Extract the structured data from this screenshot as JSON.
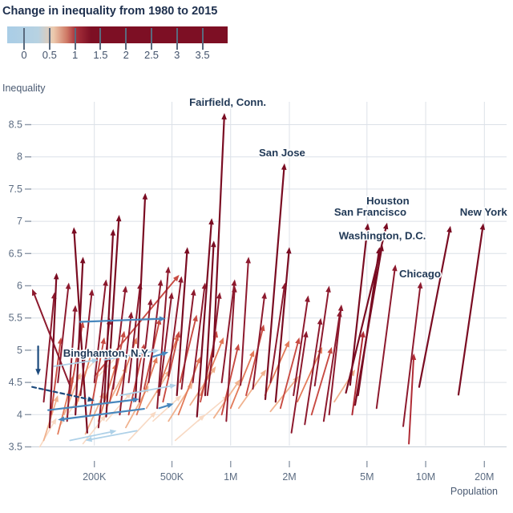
{
  "title": "Change in inequality from 1980 to 2015",
  "legend": {
    "ticks": [
      {
        "value": 0,
        "label": "0"
      },
      {
        "value": 0.5,
        "label": "0.5"
      },
      {
        "value": 1,
        "label": "1"
      },
      {
        "value": 1.5,
        "label": "1.5"
      },
      {
        "value": 2,
        "label": "2"
      },
      {
        "value": 2.5,
        "label": "2.5"
      },
      {
        "value": 3,
        "label": "3"
      },
      {
        "value": 3.5,
        "label": "3.5"
      }
    ],
    "gradient": [
      {
        "pct": 0,
        "color": "#a9cde6"
      },
      {
        "pct": 14,
        "color": "#b7d2e2"
      },
      {
        "pct": 21,
        "color": "#ecc9ad"
      },
      {
        "pct": 27,
        "color": "#cf7a66"
      },
      {
        "pct": 31,
        "color": "#a8323c"
      },
      {
        "pct": 38,
        "color": "#7d0f24"
      },
      {
        "pct": 100,
        "color": "#7d0f24"
      }
    ]
  },
  "axes": {
    "y_title": "Inequality",
    "x_title": "Population"
  },
  "chart_data": {
    "type": "arrow-scatter",
    "title": "Change in inequality from 1980 to 2015",
    "x_axis": {
      "label": "Population",
      "scale": "log",
      "ticks": [
        {
          "value": 200,
          "label": "200K"
        },
        {
          "value": 500,
          "label": "500K"
        },
        {
          "value": 1000,
          "label": "1M"
        },
        {
          "value": 2000,
          "label": "2M"
        },
        {
          "value": 5000,
          "label": "5M"
        },
        {
          "value": 10000,
          "label": "10M"
        },
        {
          "value": 20000,
          "label": "20M"
        }
      ]
    },
    "y_axis": {
      "label": "Inequality",
      "range": [
        3.5,
        8.8
      ],
      "ticks": [
        3.5,
        4,
        4.5,
        5,
        5.5,
        6,
        6.5,
        7,
        7.5,
        8,
        8.5
      ]
    },
    "arrow_semantics": {
      "tail": "1980 value [population_thousands, inequality]",
      "head": "2015 value [population_thousands, inequality]",
      "color": "change in inequality 1980-2015 (5th element)"
    },
    "color_scale": [
      {
        "max": -0.45,
        "color": "#1c4a7d",
        "width": 2.2
      },
      {
        "max": -0.18,
        "color": "#4787bd",
        "width": 2.2
      },
      {
        "max": 0.18,
        "color": "#aed1e8",
        "width": 1.8
      },
      {
        "max": 0.45,
        "color": "#f8d9c3",
        "width": 1.6
      },
      {
        "max": 0.7,
        "color": "#f0b28e",
        "width": 1.8
      },
      {
        "max": 0.95,
        "color": "#e27a59",
        "width": 1.8
      },
      {
        "max": 1.2,
        "color": "#c74a42",
        "width": 1.9
      },
      {
        "max": 1.45,
        "color": "#b02c35",
        "width": 2.0
      },
      {
        "max": 2.2,
        "color": "#8d1a2e",
        "width": 2.0
      },
      {
        "max": 99,
        "color": "#7a0c22",
        "width": 2.2
      }
    ],
    "arrows": [
      [
        105,
        3.5,
        128,
        3.95,
        0.45
      ],
      [
        135,
        3.85,
        170,
        4.3,
        0.45
      ],
      [
        175,
        3.55,
        230,
        4.0,
        0.45
      ],
      [
        230,
        3.9,
        310,
        4.35,
        0.45
      ],
      [
        300,
        3.6,
        415,
        4.05,
        0.45
      ],
      [
        400,
        3.9,
        560,
        4.3,
        0.4
      ],
      [
        520,
        3.6,
        740,
        4.0,
        0.4
      ],
      [
        680,
        3.9,
        980,
        4.3,
        0.4
      ],
      [
        160,
        4.5,
        210,
        4.9,
        0.4
      ],
      [
        210,
        4.6,
        280,
        5.0,
        0.4
      ],
      [
        110,
        3.6,
        130,
        4.3,
        0.7
      ],
      [
        140,
        4.0,
        170,
        4.65,
        0.65
      ],
      [
        180,
        3.7,
        225,
        4.35,
        0.65
      ],
      [
        230,
        4.1,
        295,
        4.75,
        0.65
      ],
      [
        290,
        3.8,
        380,
        4.45,
        0.65
      ],
      [
        370,
        4.1,
        490,
        4.7,
        0.6
      ],
      [
        480,
        3.9,
        640,
        4.5,
        0.6
      ],
      [
        620,
        4.15,
        840,
        4.75,
        0.6
      ],
      [
        820,
        3.95,
        1120,
        4.55,
        0.6
      ],
      [
        1100,
        4.1,
        1520,
        4.7,
        0.6
      ],
      [
        1600,
        4.05,
        2240,
        4.6,
        0.55
      ],
      [
        3400,
        4.2,
        4350,
        4.7,
        0.5
      ],
      [
        130,
        3.7,
        155,
        4.6,
        0.9
      ],
      [
        160,
        4.1,
        195,
        5.0,
        0.9
      ],
      [
        210,
        3.9,
        260,
        4.8,
        0.9
      ],
      [
        260,
        4.3,
        330,
        5.2,
        0.9
      ],
      [
        330,
        4.0,
        420,
        4.9,
        0.9
      ],
      [
        420,
        4.35,
        540,
        5.25,
        0.9
      ],
      [
        540,
        4.0,
        700,
        4.9,
        0.9
      ],
      [
        700,
        4.3,
        920,
        5.2,
        0.9
      ],
      [
        1000,
        4.1,
        1320,
        5.0,
        0.9
      ],
      [
        1500,
        4.3,
        2000,
        5.15,
        0.85
      ],
      [
        2200,
        4.2,
        2950,
        5.05,
        0.85
      ],
      [
        120,
        4.0,
        135,
        5.2,
        1.2
      ],
      [
        150,
        4.3,
        175,
        5.45,
        1.15
      ],
      [
        190,
        4.0,
        225,
        5.2,
        1.2
      ],
      [
        201,
        4.6,
        545,
        6.17,
        1.1
      ],
      [
        240,
        4.2,
        285,
        5.3,
        1.1
      ],
      [
        300,
        4.0,
        360,
        5.1,
        1.1
      ],
      [
        360,
        4.4,
        435,
        5.5,
        1.1
      ],
      [
        450,
        4.2,
        545,
        5.3,
        1.1
      ],
      [
        550,
        4.5,
        670,
        5.55,
        1.05
      ],
      [
        700,
        4.2,
        850,
        5.3,
        1.1
      ],
      [
        900,
        4.0,
        1100,
        5.1,
        1.1
      ],
      [
        1200,
        4.3,
        1480,
        5.4,
        1.1
      ],
      [
        1800,
        4.1,
        2250,
        5.2,
        1.1
      ],
      [
        2600,
        4.0,
        3300,
        5.05,
        1.05
      ],
      [
        4200,
        4.0,
        4800,
        5.3,
        1.3
      ],
      [
        110,
        4.2,
        125,
        5.9,
        1.7
      ],
      [
        130,
        4.5,
        148,
        6.05,
        1.55
      ],
      [
        145,
        3.9,
        160,
        5.7,
        1.8
      ],
      [
        170,
        4.3,
        195,
        5.95,
        1.65
      ],
      [
        200,
        4.5,
        230,
        6.1,
        1.6
      ],
      [
        210,
        3.8,
        240,
        5.5,
        1.7
      ],
      [
        250,
        4.4,
        290,
        6.0,
        1.6
      ],
      [
        270,
        4.0,
        310,
        5.6,
        1.6
      ],
      [
        300,
        4.5,
        345,
        6.05,
        1.55
      ],
      [
        340,
        4.2,
        390,
        5.8,
        1.6
      ],
      [
        380,
        4.5,
        440,
        6.1,
        1.6
      ],
      [
        430,
        4.3,
        500,
        5.9,
        1.6
      ],
      [
        480,
        4.6,
        560,
        6.15,
        1.55
      ],
      [
        560,
        4.4,
        650,
        5.95,
        1.55
      ],
      [
        640,
        4.5,
        740,
        6.05,
        1.55
      ],
      [
        760,
        4.3,
        880,
        5.9,
        1.6
      ],
      [
        900,
        4.5,
        1050,
        6.1,
        1.6
      ],
      [
        1300,
        4.4,
        1500,
        5.9,
        1.5
      ],
      [
        1600,
        4.5,
        1900,
        6.05,
        1.55
      ],
      [
        2100,
        4.3,
        2500,
        5.85,
        1.55
      ],
      [
        2700,
        4.45,
        3200,
        6.0,
        1.55
      ],
      [
        2400,
        3.85,
        2900,
        5.5,
        1.65
      ],
      [
        3000,
        3.9,
        3650,
        5.62,
        1.7
      ],
      [
        2050,
        3.72,
        2450,
        5.3,
        1.6
      ],
      [
        8200,
        3.55,
        8700,
        4.95,
        1.4
      ],
      [
        150,
        4.45,
        96,
        5.95,
        1.5
      ],
      [
        230,
        3.97,
        268,
        7.1,
        3.1
      ],
      [
        325,
        4.21,
        365,
        7.44,
        3.2
      ],
      [
        184,
        3.72,
        157,
        6.91,
        3.2
      ],
      [
        672,
        3.97,
        800,
        7.05,
        3.1
      ],
      [
        740,
        4.3,
        820,
        6.7,
        2.4
      ],
      [
        225,
        4.2,
        250,
        6.88,
        2.7
      ],
      [
        160,
        4.0,
        175,
        6.45,
        2.5
      ],
      [
        118,
        3.8,
        128,
        6.2,
        2.4
      ],
      [
        1124,
        4.46,
        1236,
        6.45,
        2.0
      ],
      [
        1700,
        4.2,
        2000,
        6.6,
        2.4
      ],
      [
        950,
        3.9,
        1050,
        6.0,
        2.1
      ],
      [
        420,
        4.1,
        480,
        6.3,
        2.2
      ],
      [
        530,
        4.3,
        600,
        6.6,
        2.3
      ],
      [
        3200,
        4.0,
        3700,
        5.71,
        1.7
      ],
      [
        5600,
        4.1,
        7000,
        6.33,
        2.2
      ],
      [
        814,
        4.9,
        929,
        8.68,
        3.8,
        "Fairfield, Conn."
      ],
      [
        1506,
        4.24,
        1888,
        7.9,
        3.7,
        "San Jose"
      ],
      [
        3900,
        4.34,
        6346,
        6.98,
        2.6,
        "Houston"
      ],
      [
        4100,
        4.46,
        5057,
        6.97,
        2.5,
        "San Francisco"
      ],
      [
        4346,
        4.15,
        5994,
        6.64,
        2.5,
        "Washington, D.C."
      ],
      [
        4500,
        4.3,
        5800,
        6.6,
        2.3
      ],
      [
        7670,
        3.82,
        9440,
        6.06,
        2.2,
        "Chicago"
      ],
      [
        9260,
        4.43,
        13400,
        6.93,
        2.5
      ],
      [
        14730,
        4.31,
        19760,
        6.97,
        2.7,
        "New York"
      ],
      [
        169,
        5.44,
        465,
        5.49,
        -0.3
      ],
      [
        116,
        4.07,
        340,
        4.24,
        -0.3
      ],
      [
        360,
        4.09,
        130,
        3.92,
        -0.3
      ],
      [
        96,
        4.43,
        200,
        4.22,
        -0.45,
        null,
        "dashed"
      ],
      [
        272,
        4.3,
        527,
        4.46,
        -0.1
      ],
      [
        225,
        4.85,
        430,
        5.0,
        -0.05
      ],
      [
        124,
        4.75,
        210,
        4.85,
        -0.1
      ],
      [
        400,
        4.9,
        480,
        4.97,
        -0.25
      ],
      [
        430,
        4.1,
        510,
        4.17,
        -0.25
      ],
      [
        330,
        3.75,
        180,
        3.6,
        -0.15
      ],
      [
        150,
        3.6,
        260,
        3.75,
        0.1
      ],
      [
        103,
        5.06,
        103,
        4.61,
        -0.5,
        "Binghamton, N.Y."
      ]
    ],
    "labels": [
      {
        "text": "Fairfield, Conn.",
        "at": [
          966,
          8.84
        ]
      },
      {
        "text": "San Jose",
        "at": [
          1836,
          8.06
        ]
      },
      {
        "text": "Houston",
        "at": [
          6400,
          7.31
        ]
      },
      {
        "text": "San Francisco",
        "at": [
          5200,
          7.14
        ]
      },
      {
        "text": "New York",
        "at": [
          19800,
          7.14
        ]
      },
      {
        "text": "Washington, D.C.",
        "at": [
          6000,
          6.77
        ]
      },
      {
        "text": "Chicago",
        "at": [
          9350,
          6.18
        ]
      },
      {
        "text": "Binghamton, N.Y.",
        "at": [
          231,
          4.95
        ]
      }
    ]
  }
}
